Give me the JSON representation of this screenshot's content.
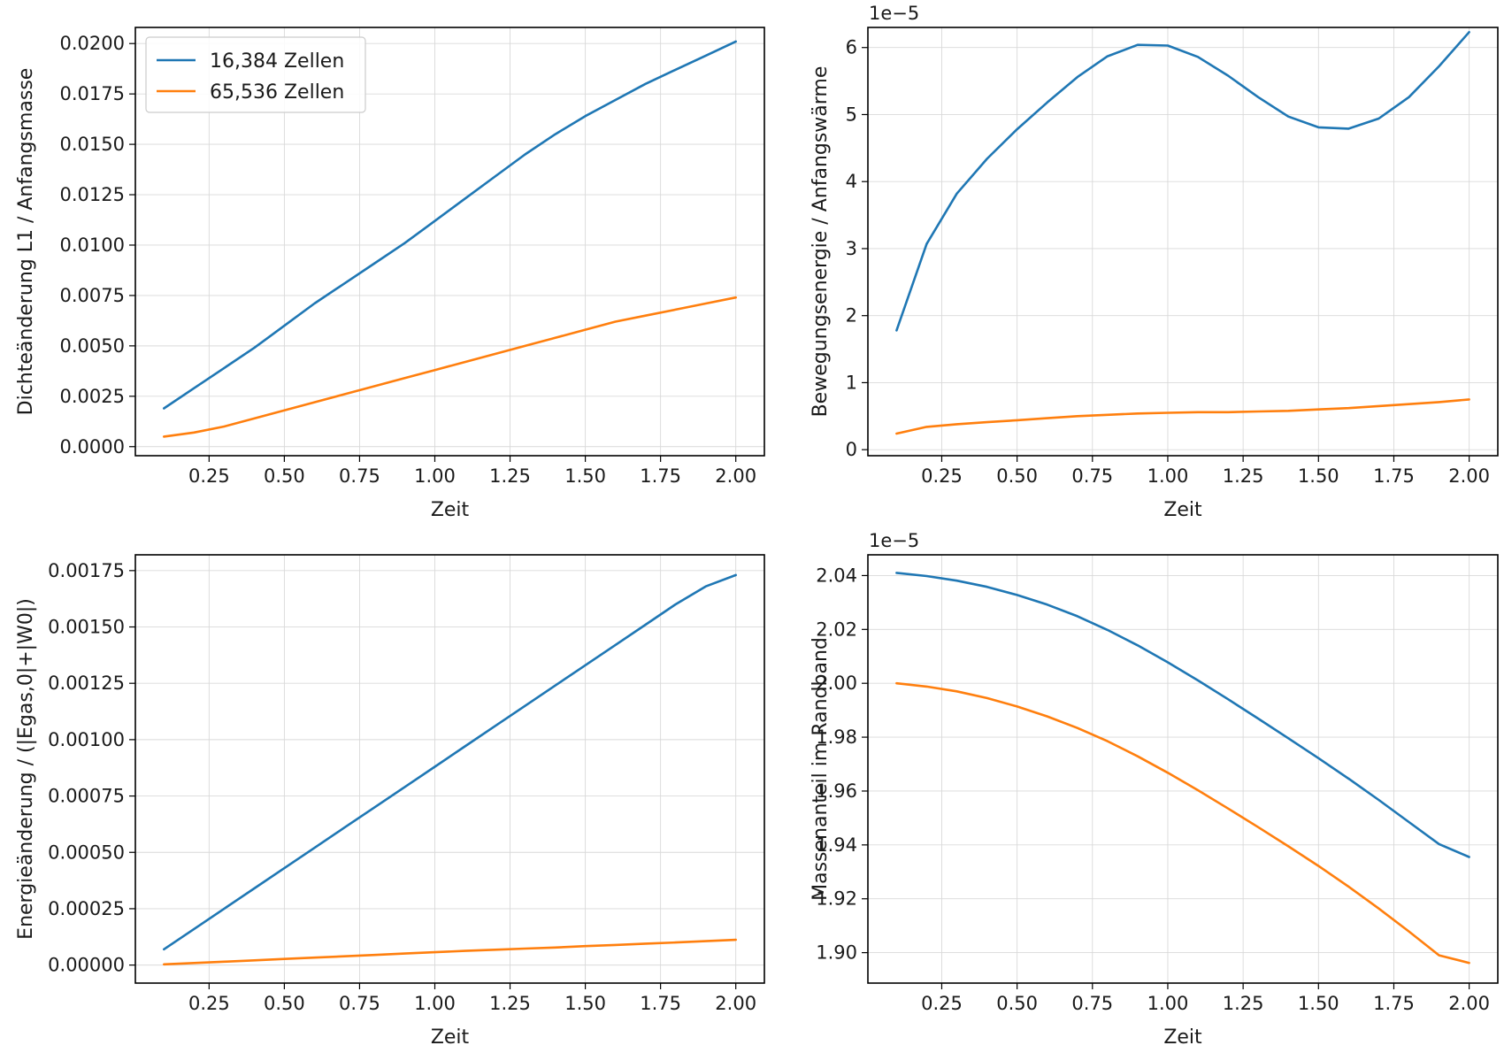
{
  "chart_data": [
    {
      "type": "line",
      "xlabel": "Zeit",
      "ylabel": "Dichteänderung L1 / Anfangsmasse",
      "offset_text": "",
      "grid": true,
      "legend": "upper-left",
      "xlim": [
        0.005,
        2.095
      ],
      "ylim": [
        -0.00045,
        0.0208
      ],
      "xticks": [
        0.25,
        0.5,
        0.75,
        1.0,
        1.25,
        1.5,
        1.75,
        2.0
      ],
      "xtick_labels": [
        "0.25",
        "0.50",
        "0.75",
        "1.00",
        "1.25",
        "1.50",
        "1.75",
        "2.00"
      ],
      "yticks": [
        0,
        0.0025,
        0.005,
        0.0075,
        0.01,
        0.0125,
        0.015,
        0.0175,
        0.02
      ],
      "ytick_labels": [
        "0.0000",
        "0.0025",
        "0.0050",
        "0.0075",
        "0.0100",
        "0.0125",
        "0.0150",
        "0.0175",
        "0.0200"
      ],
      "x": [
        0.1,
        0.2,
        0.3,
        0.4,
        0.5,
        0.6,
        0.7,
        0.8,
        0.9,
        1.0,
        1.1,
        1.2,
        1.3,
        1.4,
        1.5,
        1.6,
        1.7,
        1.8,
        1.9,
        2.0
      ],
      "series": [
        {
          "name": "16,384 Zellen",
          "color": "#1f77b4",
          "values": [
            0.0019,
            0.0029,
            0.0039,
            0.0049,
            0.006,
            0.0071,
            0.0081,
            0.0091,
            0.0101,
            0.0112,
            0.0123,
            0.0134,
            0.0145,
            0.0155,
            0.0164,
            0.0172,
            0.018,
            0.0187,
            0.0194,
            0.0201
          ]
        },
        {
          "name": "65,536 Zellen",
          "color": "#ff7f0e",
          "values": [
            0.0005,
            0.0007,
            0.001,
            0.0014,
            0.0018,
            0.0022,
            0.0026,
            0.003,
            0.0034,
            0.0038,
            0.0042,
            0.0046,
            0.005,
            0.0054,
            0.0058,
            0.0062,
            0.0065,
            0.0068,
            0.0071,
            0.0074
          ]
        }
      ]
    },
    {
      "type": "line",
      "xlabel": "Zeit",
      "ylabel": "Bewegungsenergie / Anfangswärme",
      "offset_text": "1e−5",
      "grid": true,
      "xlim": [
        0.005,
        2.095
      ],
      "ylim": [
        -0.09,
        6.3
      ],
      "xticks": [
        0.25,
        0.5,
        0.75,
        1.0,
        1.25,
        1.5,
        1.75,
        2.0
      ],
      "xtick_labels": [
        "0.25",
        "0.50",
        "0.75",
        "1.00",
        "1.25",
        "1.50",
        "1.75",
        "2.00"
      ],
      "yticks": [
        0,
        1,
        2,
        3,
        4,
        5,
        6
      ],
      "ytick_labels": [
        "0",
        "1",
        "2",
        "3",
        "4",
        "5",
        "6"
      ],
      "x": [
        0.1,
        0.2,
        0.3,
        0.4,
        0.5,
        0.6,
        0.7,
        0.8,
        0.9,
        1.0,
        1.1,
        1.2,
        1.3,
        1.4,
        1.5,
        1.6,
        1.7,
        1.8,
        1.9,
        2.0
      ],
      "series": [
        {
          "name": "16,384 Zellen",
          "color": "#1f77b4",
          "values": [
            1.78,
            3.07,
            3.82,
            4.34,
            4.78,
            5.18,
            5.56,
            5.87,
            6.04,
            6.03,
            5.86,
            5.58,
            5.26,
            4.97,
            4.81,
            4.79,
            4.94,
            5.26,
            5.72,
            6.23
          ]
        },
        {
          "name": "65,536 Zellen",
          "color": "#ff7f0e",
          "values": [
            0.24,
            0.34,
            0.38,
            0.41,
            0.44,
            0.47,
            0.5,
            0.52,
            0.54,
            0.55,
            0.56,
            0.56,
            0.57,
            0.58,
            0.6,
            0.62,
            0.65,
            0.68,
            0.71,
            0.75
          ]
        }
      ]
    },
    {
      "type": "line",
      "xlabel": "Zeit",
      "ylabel": "Energieänderung / (|Egas,0|+|W0|)",
      "offset_text": "",
      "grid": true,
      "xlim": [
        0.005,
        2.095
      ],
      "ylim": [
        -8e-05,
        0.00182
      ],
      "xticks": [
        0.25,
        0.5,
        0.75,
        1.0,
        1.25,
        1.5,
        1.75,
        2.0
      ],
      "xtick_labels": [
        "0.25",
        "0.50",
        "0.75",
        "1.00",
        "1.25",
        "1.50",
        "1.75",
        "2.00"
      ],
      "yticks": [
        0,
        0.00025,
        0.0005,
        0.00075,
        0.001,
        0.00125,
        0.0015,
        0.00175
      ],
      "ytick_labels": [
        "0.00000",
        "0.00025",
        "0.00050",
        "0.00075",
        "0.00100",
        "0.00125",
        "0.00150",
        "0.00175"
      ],
      "x": [
        0.1,
        0.2,
        0.3,
        0.4,
        0.5,
        0.6,
        0.7,
        0.8,
        0.9,
        1.0,
        1.1,
        1.2,
        1.3,
        1.4,
        1.5,
        1.6,
        1.7,
        1.8,
        1.9,
        2.0
      ],
      "series": [
        {
          "name": "16,384 Zellen",
          "color": "#1f77b4",
          "values": [
            7e-05,
            0.00016,
            0.00025,
            0.00034,
            0.00043,
            0.00052,
            0.00061,
            0.0007,
            0.00079,
            0.00088,
            0.00097,
            0.00106,
            0.00115,
            0.00124,
            0.00133,
            0.00142,
            0.00151,
            0.0016,
            0.00168,
            0.00173
          ]
        },
        {
          "name": "65,536 Zellen",
          "color": "#ff7f0e",
          "values": [
            3.3e-06,
            9e-06,
            1.5e-05,
            2.1e-05,
            2.7e-05,
            3.3e-05,
            3.9e-05,
            4.5e-05,
            5.1e-05,
            5.7e-05,
            6.3e-05,
            6.8e-05,
            7.3e-05,
            7.8e-05,
            8.4e-05,
            8.9e-05,
            9.5e-05,
            0.0001,
            0.000106,
            0.000112
          ]
        }
      ]
    },
    {
      "type": "line",
      "xlabel": "Zeit",
      "ylabel": "Massenanteil im Randband",
      "offset_text": "1e−5",
      "grid": true,
      "xlim": [
        0.005,
        2.095
      ],
      "ylim": [
        1.8887,
        2.0477
      ],
      "xticks": [
        0.25,
        0.5,
        0.75,
        1.0,
        1.25,
        1.5,
        1.75,
        2.0
      ],
      "xtick_labels": [
        "0.25",
        "0.50",
        "0.75",
        "1.00",
        "1.25",
        "1.50",
        "1.75",
        "2.00"
      ],
      "yticks": [
        1.9,
        1.92,
        1.94,
        1.96,
        1.98,
        2.0,
        2.02,
        2.04
      ],
      "ytick_labels": [
        "1.90",
        "1.92",
        "1.94",
        "1.96",
        "1.98",
        "2.00",
        "2.02",
        "2.04"
      ],
      "x": [
        0.1,
        0.2,
        0.3,
        0.4,
        0.5,
        0.6,
        0.7,
        0.8,
        0.9,
        1.0,
        1.1,
        1.2,
        1.3,
        1.4,
        1.5,
        1.6,
        1.7,
        1.8,
        1.9,
        2.0
      ],
      "series": [
        {
          "name": "16,384 Zellen",
          "color": "#1f77b4",
          "values": [
            2.041,
            2.0398,
            2.0381,
            2.0358,
            2.0328,
            2.0292,
            2.0249,
            2.0198,
            2.0141,
            2.0078,
            2.0011,
            1.9941,
            1.9869,
            1.9796,
            1.9722,
            1.9646,
            1.9567,
            1.9485,
            1.9403,
            1.9355
          ]
        },
        {
          "name": "65,536 Zellen",
          "color": "#ff7f0e",
          "values": [
            2.0,
            1.9988,
            1.997,
            1.9945,
            1.9914,
            1.9877,
            1.9834,
            1.9785,
            1.9729,
            1.9668,
            1.9603,
            1.9535,
            1.9466,
            1.9395,
            1.9322,
            1.9245,
            1.9164,
            1.9079,
            1.899,
            1.8962
          ]
        }
      ]
    }
  ]
}
